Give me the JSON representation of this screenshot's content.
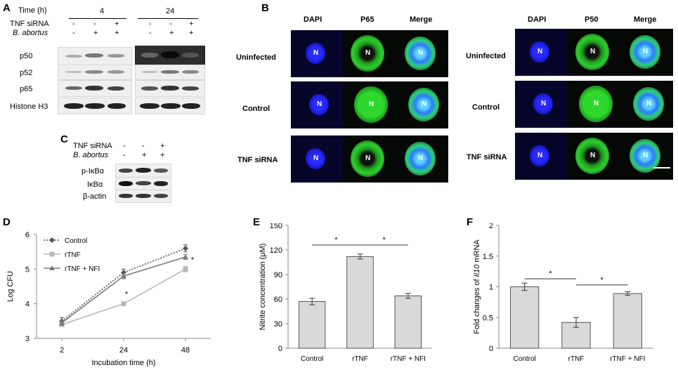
{
  "panels": {
    "A": "A",
    "B": "B",
    "C": "C",
    "D": "D",
    "E": "E",
    "F": "F"
  },
  "panelA": {
    "time_label": "Time (h)",
    "time_points": [
      "4",
      "24"
    ],
    "row_labels": [
      "TNF siRNA",
      "B. abortus"
    ],
    "signs_tnf": [
      "-",
      "-",
      "+",
      "-",
      "-",
      "+"
    ],
    "signs_ba": [
      "-",
      "+",
      "+",
      "-",
      "+",
      "+"
    ],
    "blots": [
      "p50",
      "p52",
      "p65",
      "Histone H3"
    ]
  },
  "panelC": {
    "row_labels": [
      "TNF siRNA",
      "B. abortus"
    ],
    "signs_tnf": [
      "-",
      "-",
      "+"
    ],
    "signs_ba": [
      "-",
      "+",
      "+"
    ],
    "blots": [
      "p-IκBα",
      "IκBα",
      "β-actin"
    ]
  },
  "panelB": {
    "left_cols": [
      "DAPI",
      "P65",
      "Merge"
    ],
    "right_cols": [
      "DAPI",
      "P50",
      "Merge"
    ],
    "rows": [
      "Uninfected",
      "Control",
      "TNF siRNA"
    ],
    "nucleus_label": "N"
  },
  "chart_data": [
    {
      "panel": "D",
      "type": "line",
      "x": [
        2,
        24,
        48
      ],
      "xlabel": "Incubation time (h)",
      "ylabel": "Log CFU",
      "ylim": [
        3,
        6
      ],
      "yticks": [
        "3",
        "4",
        "5",
        "6"
      ],
      "xticks": [
        "2",
        "24",
        "48"
      ],
      "series": [
        {
          "name": "Control",
          "values": [
            3.5,
            4.9,
            5.6
          ],
          "errors": [
            0.1,
            0.1,
            0.1
          ],
          "color": "#555555",
          "style": "dotted",
          "marker": "diamond"
        },
        {
          "name": "rTNF",
          "values": [
            3.4,
            4.0,
            5.0
          ],
          "errors": [
            0.05,
            0.05,
            0.08
          ],
          "color": "#b8b8b8",
          "style": "solid",
          "marker": "square"
        },
        {
          "name": "rTNF + NFI",
          "values": [
            3.45,
            4.8,
            5.35
          ],
          "errors": [
            0.07,
            0.08,
            0.07
          ],
          "color": "#7a7a7a",
          "style": "solid",
          "marker": "triangle"
        }
      ],
      "annotations": [
        "*",
        "*"
      ],
      "legend": "top-left"
    },
    {
      "panel": "E",
      "type": "bar",
      "categories": [
        "Control",
        "rTNF",
        "rTNF + NFI"
      ],
      "values": [
        57,
        112,
        64
      ],
      "errors": [
        4,
        3,
        3
      ],
      "ylabel": "Nitrite concentration (μM)",
      "ylim": [
        0,
        150
      ],
      "yticks": [
        "0",
        "30",
        "60",
        "90",
        "120",
        "150"
      ],
      "annotations": [
        "*",
        "*"
      ],
      "bar_color": "#d9d9d9"
    },
    {
      "panel": "F",
      "type": "bar",
      "categories": [
        "Control",
        "rTNF",
        "rTNF + NFI"
      ],
      "values": [
        1.0,
        0.42,
        0.89
      ],
      "errors": [
        0.06,
        0.08,
        0.03
      ],
      "ylabel_prefix": "Fold changes of ",
      "ylabel_gene": "Il10",
      "ylabel_suffix": " mRNA",
      "ylim": [
        0,
        2
      ],
      "yticks": [
        "0",
        "0.5",
        "1",
        "1.5",
        "2"
      ],
      "annotations": [
        "*",
        "*"
      ],
      "bar_color": "#d9d9d9"
    }
  ]
}
